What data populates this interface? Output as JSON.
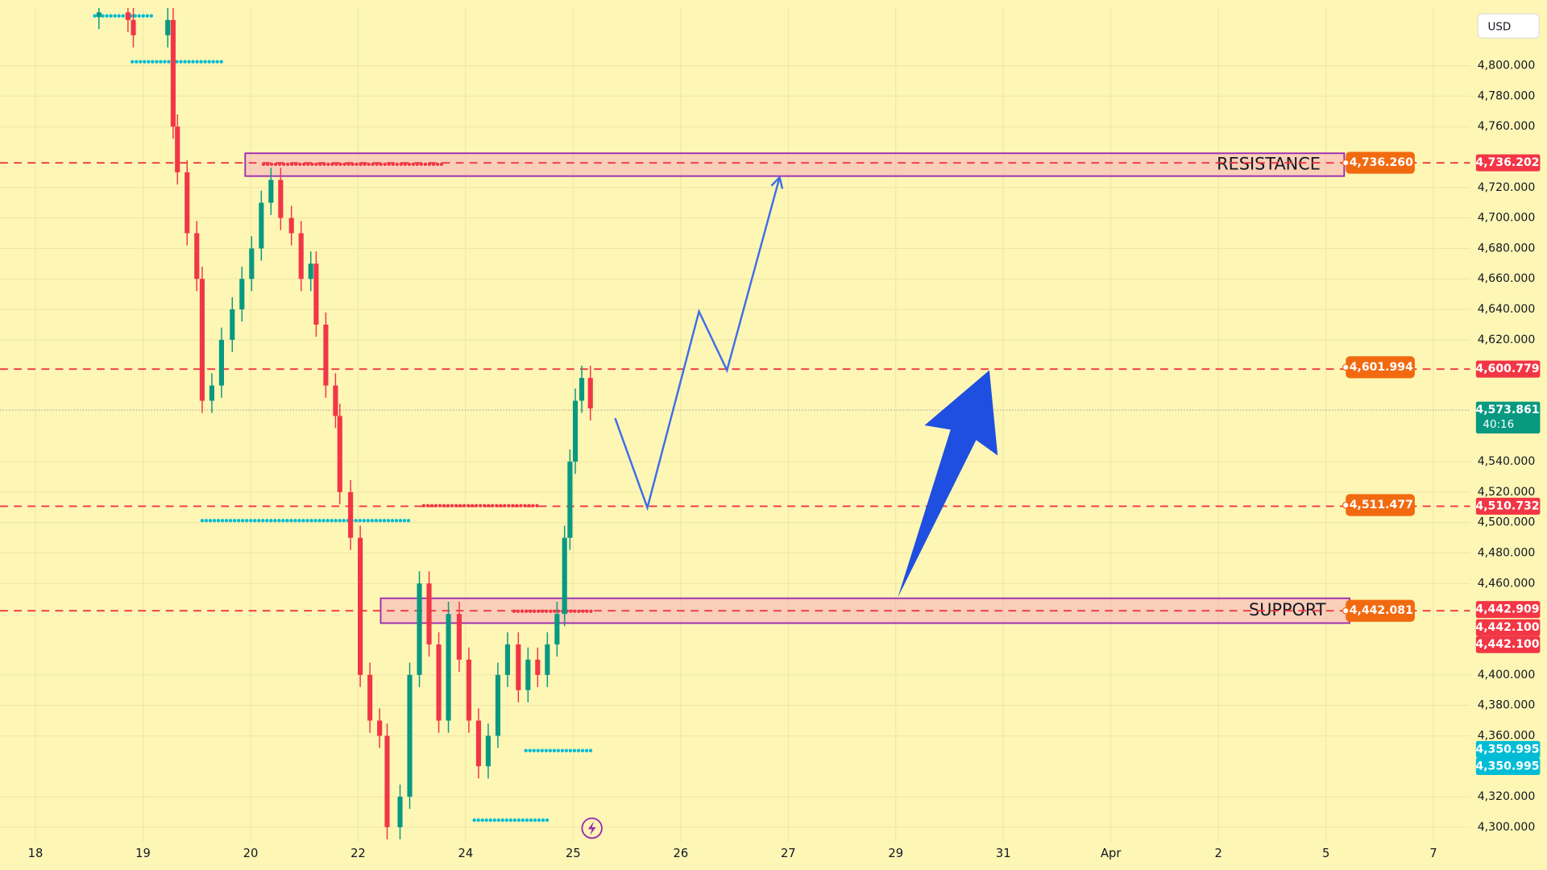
{
  "chart_data": {
    "type": "candlestick",
    "currency": "USD",
    "xlim": [
      -0.33,
      13.34
    ],
    "ylim": [
      4274.5,
      4837.9
    ],
    "grid": true,
    "up_color": "#089981",
    "down_color": "#f23645",
    "xticks": [
      {
        "value": 0,
        "label": "18"
      },
      {
        "value": 1,
        "label": "19"
      },
      {
        "value": 2,
        "label": "20"
      },
      {
        "value": 3,
        "label": "22"
      },
      {
        "value": 4,
        "label": "24"
      },
      {
        "value": 5,
        "label": "25"
      },
      {
        "value": 6,
        "label": "26"
      },
      {
        "value": 7,
        "label": "27"
      },
      {
        "value": 8,
        "label": "29"
      },
      {
        "value": 9,
        "label": "31"
      },
      {
        "value": 10,
        "label": "Apr"
      },
      {
        "value": 11,
        "label": "2"
      },
      {
        "value": 12,
        "label": "5"
      },
      {
        "value": 13,
        "label": "7"
      }
    ],
    "yticks": [
      {
        "value": 4300,
        "label": "4,300.000"
      },
      {
        "value": 4320,
        "label": "4,320.000"
      },
      {
        "value": 4360,
        "label": "4,360.000"
      },
      {
        "value": 4380,
        "label": "4,380.000"
      },
      {
        "value": 4400,
        "label": "4,400.000"
      },
      {
        "value": 4460,
        "label": "4,460.000"
      },
      {
        "value": 4480,
        "label": "4,480.000"
      },
      {
        "value": 4500,
        "label": "4,500.000"
      },
      {
        "value": 4520,
        "label": "4,520.000"
      },
      {
        "value": 4540,
        "label": "4,540.000"
      },
      {
        "value": 4620,
        "label": "4,620.000"
      },
      {
        "value": 4640,
        "label": "4,640.000"
      },
      {
        "value": 4660,
        "label": "4,660.000"
      },
      {
        "value": 4680,
        "label": "4,680.000"
      },
      {
        "value": 4700,
        "label": "4,700.000"
      },
      {
        "value": 4720,
        "label": "4,720.000"
      },
      {
        "value": 4760,
        "label": "4,760.000"
      },
      {
        "value": 4780,
        "label": "4,780.000"
      },
      {
        "value": 4800,
        "label": "4,800.000"
      }
    ],
    "x": [
      0.59,
      0.86,
      0.91,
      1.23,
      1.28,
      1.32,
      1.41,
      1.5,
      1.55,
      1.64,
      1.73,
      1.83,
      1.92,
      2.01,
      2.1,
      2.19,
      2.28,
      2.38,
      2.47,
      2.56,
      2.61,
      2.7,
      2.79,
      2.83,
      2.93,
      3.02,
      3.11,
      3.2,
      3.27,
      3.39,
      3.48,
      3.57,
      3.66,
      3.75,
      3.84,
      3.94,
      4.03,
      4.12,
      4.21,
      4.3,
      4.39,
      4.49,
      4.58,
      4.67,
      4.76,
      4.85,
      4.92,
      4.97,
      5.02,
      5.08,
      5.16
    ],
    "open": [
      4832,
      4835,
      4830,
      4820,
      4830,
      4760,
      4730,
      4690,
      4660,
      4580,
      4590,
      4620,
      4640,
      4660,
      4680,
      4710,
      4725,
      4700,
      4690,
      4660,
      4670,
      4630,
      4590,
      4570,
      4520,
      4490,
      4400,
      4370,
      4360,
      4300,
      4320,
      4400,
      4460,
      4420,
      4370,
      4440,
      4410,
      4370,
      4340,
      4360,
      4400,
      4420,
      4390,
      4410,
      4400,
      4420,
      4440,
      4490,
      4540,
      4580,
      4595
    ],
    "high": [
      4843,
      4843,
      4838,
      4838,
      4838,
      4768,
      4738,
      4698,
      4668,
      4598,
      4628,
      4648,
      4668,
      4688,
      4718,
      4733,
      4733,
      4708,
      4698,
      4678,
      4678,
      4638,
      4598,
      4578,
      4528,
      4498,
      4408,
      4378,
      4368,
      4328,
      4408,
      4468,
      4468,
      4428,
      4448,
      4448,
      4418,
      4378,
      4368,
      4408,
      4428,
      4428,
      4418,
      4418,
      4428,
      4448,
      4498,
      4548,
      4588,
      4603,
      4603
    ],
    "low": [
      4824,
      4822,
      4812,
      4812,
      4752,
      4722,
      4682,
      4652,
      4572,
      4572,
      4582,
      4612,
      4632,
      4652,
      4672,
      4702,
      4692,
      4682,
      4652,
      4652,
      4622,
      4582,
      4562,
      4512,
      4482,
      4392,
      4362,
      4352,
      4292,
      4292,
      4312,
      4392,
      4412,
      4362,
      4362,
      4402,
      4362,
      4332,
      4332,
      4352,
      4392,
      4382,
      4382,
      4392,
      4392,
      4412,
      4432,
      4482,
      4532,
      4572,
      4567
    ],
    "close": [
      4835,
      4830,
      4820,
      4830,
      4760,
      4730,
      4690,
      4660,
      4580,
      4590,
      4620,
      4640,
      4660,
      4680,
      4710,
      4725,
      4700,
      4690,
      4660,
      4670,
      4630,
      4590,
      4570,
      4520,
      4490,
      4400,
      4370,
      4360,
      4300,
      4320,
      4400,
      4460,
      4420,
      4370,
      4440,
      4410,
      4370,
      4340,
      4360,
      4400,
      4420,
      4390,
      4410,
      4400,
      4420,
      4440,
      4490,
      4540,
      4580,
      4595,
      4575
    ],
    "pivots": [
      {
        "x0": 0.55,
        "x1": 1.1,
        "y": 4832.7,
        "color": "#00bcd4"
      },
      {
        "x0": 0.9,
        "x1": 1.76,
        "y": 4802.6,
        "color": "#00bcd4"
      },
      {
        "x0": 1.55,
        "x1": 3.5,
        "y": 4501.3,
        "color": "#00bcd4"
      },
      {
        "x0": 4.56,
        "x1": 5.19,
        "y": 4350.3,
        "color": "#00bcd4"
      },
      {
        "x0": 4.08,
        "x1": 4.76,
        "y": 4304.6,
        "color": "#00bcd4"
      },
      {
        "x0": 2.12,
        "x1": 3.81,
        "y": 4735.3,
        "color": "#f23645"
      },
      {
        "x0": 3.61,
        "x1": 4.67,
        "y": 4511.1,
        "color": "#f23645"
      },
      {
        "x0": 4.45,
        "x1": 5.18,
        "y": 4441.8,
        "color": "#f23645"
      }
    ],
    "zones": [
      {
        "label": "RESISTANCE",
        "low": 4727.5,
        "high": 4742.5,
        "x0": 1.95,
        "x1": 12.17
      },
      {
        "label": "SUPPORT",
        "low": 4434,
        "high": 4450.3,
        "x0": 3.21,
        "x1": 12.22
      }
    ],
    "projection": {
      "x": [
        5.39,
        5.69,
        6.17,
        6.43,
        6.92
      ],
      "y": [
        4568.6,
        4509.8,
        4638.6,
        4600,
        4726.8
      ],
      "color": "#3d6fe8"
    },
    "arrow": {
      "x": [
        8.02,
        8.87
      ],
      "y": [
        4451,
        4600
      ],
      "color": "#1e4fe0"
    },
    "alert_tags": [
      {
        "value": 4736.26,
        "label": "4,736.260"
      },
      {
        "value": 4601.994,
        "label": "4,601.994"
      },
      {
        "value": 4511.477,
        "label": "4,511.477"
      },
      {
        "value": 4442.081,
        "label": "4,442.081"
      }
    ],
    "alert_color": "#f26a10",
    "axis_badges": [
      {
        "value": 4736.202,
        "label": "4,736.202",
        "color": "#f23645",
        "line": "dashed"
      },
      {
        "value": 4600.779,
        "label": "4,600.779",
        "color": "#f23645",
        "line": "dashed"
      },
      {
        "value": 4573.861,
        "label": "4,573.861",
        "sublabel": "40:16",
        "color": "#089981",
        "line": "dotted"
      },
      {
        "value": 4510.732,
        "label": "4,510.732",
        "color": "#f23645",
        "line": "dashed"
      },
      {
        "value": 4442.909,
        "label": "4,442.909",
        "color": "#f23645"
      },
      {
        "value": 4442.1,
        "label": "4,442.100",
        "color": "#f23645",
        "line": "dashed"
      },
      {
        "value": 4442.1,
        "label": "4,442.100",
        "color": "#f23645"
      },
      {
        "value": 4350.995,
        "label": "4,350.995",
        "color": "#00bcd4"
      },
      {
        "value": 4350.995,
        "label": "4,350.995",
        "color": "#00bcd4"
      }
    ]
  }
}
